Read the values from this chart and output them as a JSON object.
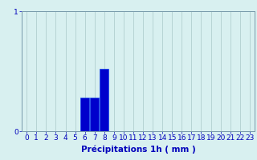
{
  "hours": [
    0,
    1,
    2,
    3,
    4,
    5,
    6,
    7,
    8,
    9,
    10,
    11,
    12,
    13,
    14,
    15,
    16,
    17,
    18,
    19,
    20,
    21,
    22,
    23
  ],
  "values": [
    0,
    0,
    0,
    0,
    0,
    0,
    0.28,
    0.28,
    0.52,
    0,
    0,
    0,
    0,
    0,
    0,
    0,
    0,
    0,
    0,
    0,
    0,
    0,
    0,
    0
  ],
  "bar_color": "#0000cc",
  "bar_edge_color": "#1144ee",
  "background_color": "#d8f0f0",
  "grid_color": "#aac8c8",
  "axis_color": "#7799aa",
  "text_color": "#0000bb",
  "xlabel": "Précipitations 1h ( mm )",
  "ylim": [
    0,
    1
  ],
  "xlim": [
    -0.5,
    23.5
  ],
  "yticks": [
    0,
    1
  ],
  "xticks": [
    0,
    1,
    2,
    3,
    4,
    5,
    6,
    7,
    8,
    9,
    10,
    11,
    12,
    13,
    14,
    15,
    16,
    17,
    18,
    19,
    20,
    21,
    22,
    23
  ],
  "xlabel_fontsize": 7.5,
  "tick_fontsize": 6.5,
  "bar_width": 0.9
}
